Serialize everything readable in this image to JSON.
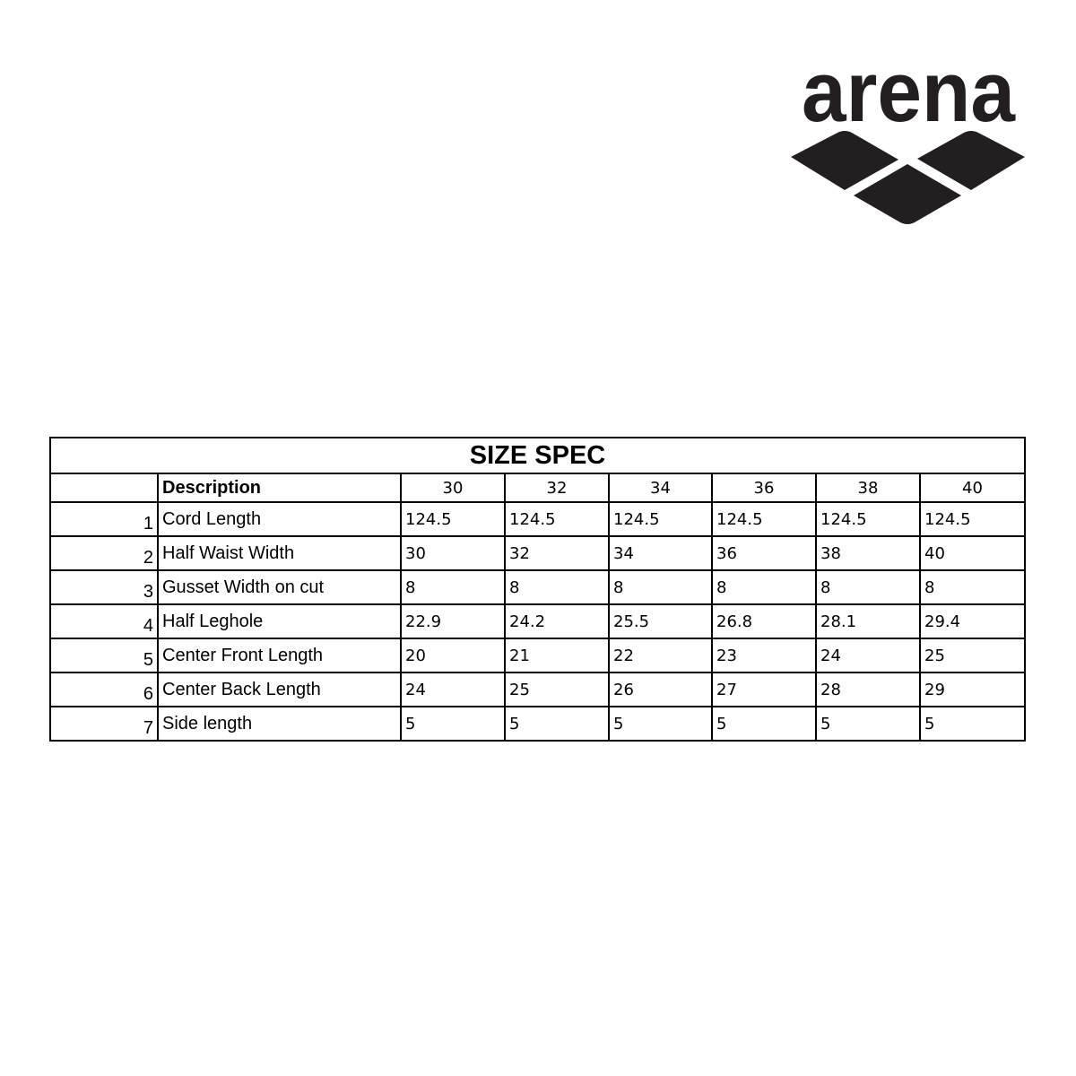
{
  "logo": {
    "text": "arena",
    "color": "#231f20"
  },
  "table": {
    "title": "SIZE SPEC",
    "header": {
      "description": "Description",
      "sizes": [
        "30",
        "32",
        "34",
        "36",
        "38",
        "40"
      ]
    },
    "rows": [
      {
        "num": "1",
        "description": "Cord Length",
        "values": [
          "124.5",
          "124.5",
          "124.5",
          "124.5",
          "124.5",
          "124.5"
        ]
      },
      {
        "num": "2",
        "description": "Half Waist Width",
        "values": [
          "30",
          "32",
          "34",
          "36",
          "38",
          "40"
        ]
      },
      {
        "num": "3",
        "description": "Gusset Width on cut",
        "values": [
          "8",
          "8",
          "8",
          "8",
          "8",
          "8"
        ]
      },
      {
        "num": "4",
        "description": "Half Leghole",
        "values": [
          "22.9",
          "24.2",
          "25.5",
          "26.8",
          "28.1",
          "29.4"
        ]
      },
      {
        "num": "5",
        "description": "Center Front Length",
        "values": [
          "20",
          "21",
          "22",
          "23",
          "24",
          "25"
        ]
      },
      {
        "num": "6",
        "description": "Center Back Length",
        "values": [
          "24",
          "25",
          "26",
          "27",
          "28",
          "29"
        ]
      },
      {
        "num": "7",
        "description": "Side length",
        "values": [
          "5",
          "5",
          "5",
          "5",
          "5",
          "5"
        ]
      }
    ]
  }
}
